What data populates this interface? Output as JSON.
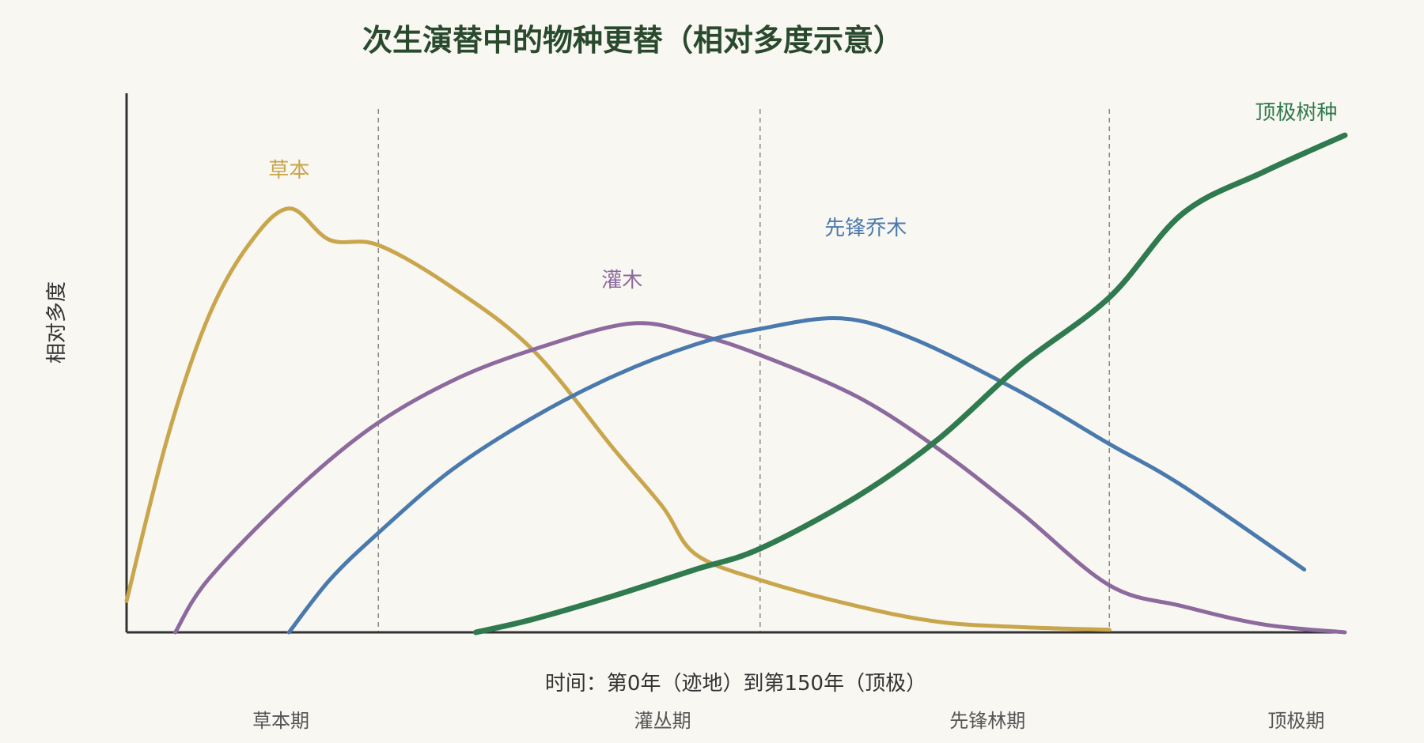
{
  "chart_data": {
    "type": "line",
    "title": "次生演替中的物种更替（相对多度示意）",
    "xlabel": "时间：第0年（迹地）到第150年（顶极）",
    "ylabel": "相对多度",
    "xlim": [
      0,
      150
    ],
    "ylim": [
      0,
      100
    ],
    "grid": false,
    "stage_boundaries": [
      31,
      78,
      121
    ],
    "stages": [
      {
        "label": "草本期",
        "x": 19
      },
      {
        "label": "灌丛期",
        "x": 66
      },
      {
        "label": "先锋林期",
        "x": 106
      },
      {
        "label": "顶极期",
        "x": 144
      }
    ],
    "series": [
      {
        "name": "草本",
        "color": "#c9a54c",
        "label_pos": [
          20,
          87
        ],
        "x": [
          0,
          5,
          10,
          15,
          20,
          25,
          31,
          40,
          50,
          60,
          66,
          70,
          78,
          90,
          100,
          110,
          121
        ],
        "y": [
          6,
          37,
          60,
          74,
          81,
          75,
          74,
          66,
          54,
          35,
          24,
          15,
          10,
          5,
          2,
          1,
          0.5
        ]
      },
      {
        "name": "灌木",
        "color": "#8c6a9e",
        "label_pos": [
          61,
          66
        ],
        "x": [
          6,
          10,
          20,
          30,
          40,
          50,
          62,
          70,
          78,
          90,
          100,
          110,
          121,
          130,
          140,
          150
        ],
        "y": [
          0,
          10,
          26,
          39,
          48,
          54,
          59,
          57,
          53,
          45,
          35,
          23,
          9,
          5,
          1.5,
          0
        ]
      },
      {
        "name": "先锋乔木",
        "color": "#4a7aad",
        "label_pos": [
          91,
          76
        ],
        "x": [
          20,
          25,
          31,
          40,
          50,
          60,
          70,
          78,
          88,
          97,
          110,
          121,
          130,
          145
        ],
        "y": [
          0,
          10,
          19,
          31,
          41,
          49,
          55,
          58,
          60,
          56,
          46,
          36,
          28,
          12
        ]
      },
      {
        "name": "顶极树种",
        "color": "#2f7a4e",
        "label_pos": [
          144,
          98
        ],
        "x": [
          43,
          50,
          60,
          70,
          78,
          90,
          100,
          110,
          121,
          130,
          140,
          150
        ],
        "y": [
          0,
          2.5,
          7,
          12,
          16,
          26,
          37,
          51,
          64,
          80,
          88,
          95
        ]
      }
    ]
  }
}
